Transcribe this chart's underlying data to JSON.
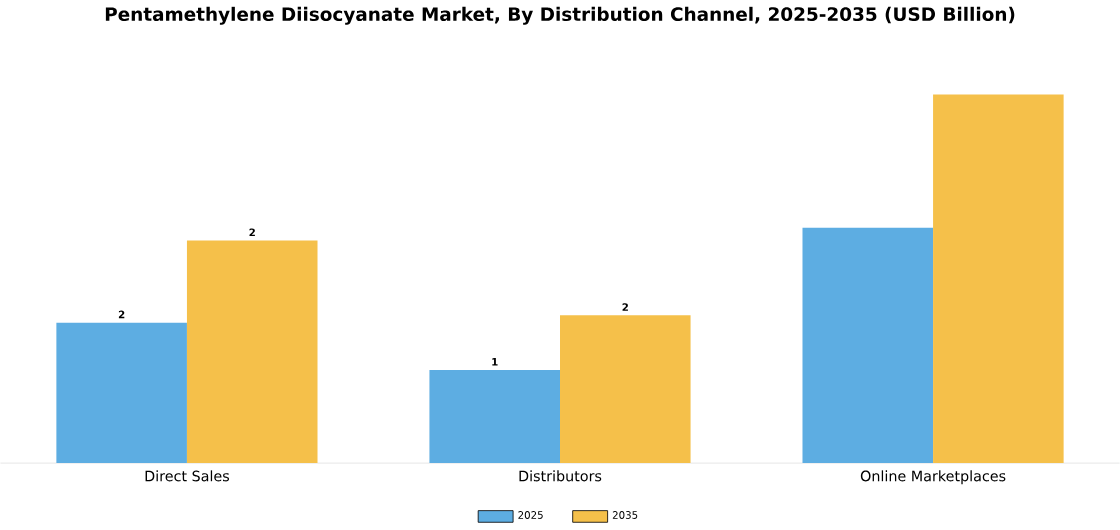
{
  "chart_data": {
    "type": "bar",
    "title": "Pentamethylene Diisocyanate Market, By Distribution Channel, 2025-2035 (USD Billion)",
    "categories": [
      "Direct Sales",
      "Distributors",
      "Online Marketplaces"
    ],
    "series": [
      {
        "name": "2025",
        "color": "#5dade2",
        "values": [
          1.54,
          1.02,
          2.58
        ],
        "value_labels": [
          "2",
          "1",
          null
        ]
      },
      {
        "name": "2035",
        "color": "#f5c04a",
        "values": [
          2.44,
          1.62,
          4.04
        ],
        "value_labels": [
          "2",
          "2",
          null
        ]
      }
    ],
    "legend": "bottom",
    "grid": false
  }
}
